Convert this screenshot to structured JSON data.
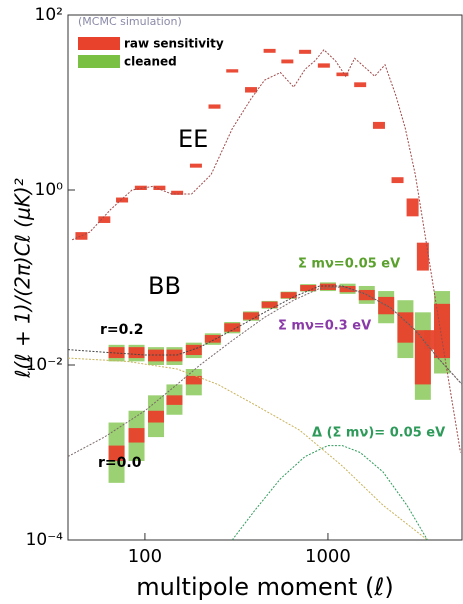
{
  "chart_data": {
    "type": "line",
    "x_label": "multipole moment (ℓ)",
    "y_label": "ℓ(ℓ + 1)/(2π)Cℓ (μK)²",
    "log_x": true,
    "log_y": true,
    "xlim": [
      38,
      5400
    ],
    "ylim": [
      0.0001,
      100
    ],
    "xticks": [
      100,
      1000
    ],
    "yticks": [
      {
        "value": 0.0001,
        "label": "10⁻⁴"
      },
      {
        "value": 0.01,
        "label": "10⁻²"
      },
      {
        "value": 1,
        "label": "10⁰"
      },
      {
        "value": 100,
        "label": "10²"
      }
    ],
    "legend_title": "(MCMC simulation)",
    "legend": [
      {
        "name": "raw sensitivity",
        "color": "#e8412c"
      },
      {
        "name": "cleaned",
        "color": "#7ac143"
      }
    ],
    "legend_position": "upper left",
    "annotations": [
      "EE",
      "BB",
      "r=0.2",
      "r=0.0",
      "Σ mν=0.05 eV",
      "Σ mν=0.3 eV",
      "Δ (Σ mν)= 0.05 eV"
    ],
    "lines": [
      {
        "color": "#a04848",
        "x": [
          40,
          50,
          65,
          85,
          110,
          140,
          180,
          230,
          300,
          380,
          450,
          550,
          650,
          750,
          850,
          950,
          1100,
          1250,
          1400,
          1600,
          1800,
          2050,
          2350,
          2650,
          3000,
          3400,
          3900,
          4500,
          5300
        ],
        "values": [
          0.27,
          0.33,
          0.6,
          1.0,
          1.1,
          0.9,
          0.9,
          1.5,
          5,
          11,
          18,
          22,
          15,
          24,
          30,
          40,
          30,
          20,
          32,
          25,
          20,
          27,
          12,
          5,
          1.5,
          0.3,
          0.05,
          0.008,
          0.001
        ]
      },
      {
        "color": "#c8b25a",
        "x": [
          38,
          80,
          150,
          250,
          400,
          700,
          1200,
          2000,
          3500
        ],
        "values": [
          0.012,
          0.011,
          0.009,
          0.006,
          0.0035,
          0.0018,
          0.0007,
          0.00025,
          0.0001
        ]
      },
      {
        "color": "#444444",
        "x": [
          38,
          60,
          100,
          150,
          200,
          300,
          450,
          650,
          900,
          1200,
          1600,
          2200,
          3000,
          4000,
          5400
        ],
        "values": [
          0.015,
          0.014,
          0.013,
          0.013,
          0.016,
          0.025,
          0.04,
          0.06,
          0.08,
          0.08,
          0.065,
          0.045,
          0.025,
          0.012,
          0.006
        ]
      },
      {
        "color": "#7a6a6a",
        "x": [
          38,
          60,
          100,
          150,
          200,
          300,
          450,
          650,
          900,
          1200,
          1600,
          2200,
          3000,
          4000,
          5400
        ],
        "values": [
          0.0009,
          0.0015,
          0.003,
          0.006,
          0.01,
          0.019,
          0.035,
          0.055,
          0.075,
          0.078,
          0.065,
          0.045,
          0.025,
          0.012,
          0.006
        ]
      },
      {
        "color": "#2e9a5a",
        "x": [
          300,
          400,
          550,
          750,
          1000,
          1200,
          1500,
          2000,
          2700,
          3500
        ],
        "values": [
          0.0001,
          0.00022,
          0.0005,
          0.0009,
          0.0012,
          0.0012,
          0.001,
          0.0006,
          0.00025,
          0.0001
        ]
      }
    ],
    "bandpowers": [
      {
        "x": [
          45,
          60,
          75,
          95,
          120,
          150,
          190,
          240,
          300,
          380,
          480,
          600,
          750,
          950,
          1200,
          1500,
          1900,
          2400,
          2900,
          3300,
          3600
        ],
        "raw_lower": [
          0.27,
          0.42,
          0.72,
          1.0,
          1.0,
          0.88,
          1.8,
          8.5,
          22,
          13,
          37,
          28,
          36,
          25,
          20,
          15,
          5,
          1.2,
          0.5,
          0.12,
          0.015
        ],
        "raw_upper": [
          0.33,
          0.5,
          0.82,
          1.12,
          1.12,
          0.98,
          2.0,
          9.5,
          24,
          15,
          41,
          31,
          40,
          28,
          22,
          17,
          6,
          1.4,
          0.8,
          0.25,
          0.025
        ]
      },
      {
        "x": [
          70,
          90,
          115,
          145,
          185,
          235,
          300,
          380,
          480,
          610,
          780,
          1000,
          1280,
          1630,
          2080,
          2650,
          3300,
          4200
        ],
        "raw_lower": [
          0.012,
          0.012,
          0.011,
          0.011,
          0.013,
          0.018,
          0.024,
          0.033,
          0.045,
          0.058,
          0.07,
          0.072,
          0.068,
          0.055,
          0.038,
          0.018,
          0.006,
          0.012
        ],
        "raw_upper": [
          0.016,
          0.016,
          0.015,
          0.015,
          0.017,
          0.022,
          0.03,
          0.04,
          0.053,
          0.068,
          0.082,
          0.085,
          0.08,
          0.072,
          0.06,
          0.04,
          0.025,
          0.05
        ],
        "cleaned_lower": [
          0.011,
          0.011,
          0.01,
          0.01,
          0.012,
          0.017,
          0.023,
          0.032,
          0.044,
          0.057,
          0.069,
          0.07,
          0.065,
          0.05,
          0.03,
          0.012,
          0.004,
          0.008
        ],
        "cleaned_upper": [
          0.017,
          0.017,
          0.016,
          0.016,
          0.018,
          0.023,
          0.031,
          0.041,
          0.054,
          0.069,
          0.084,
          0.088,
          0.085,
          0.08,
          0.07,
          0.055,
          0.04,
          0.07
        ]
      },
      {
        "x": [
          70,
          90,
          115,
          145,
          185
        ],
        "raw_lower": [
          0.0008,
          0.0013,
          0.0022,
          0.0035,
          0.006
        ],
        "raw_upper": [
          0.0012,
          0.0019,
          0.003,
          0.0045,
          0.0075
        ],
        "cleaned_lower": [
          0.00045,
          0.0008,
          0.0015,
          0.0027,
          0.0045
        ],
        "cleaned_upper": [
          0.0022,
          0.003,
          0.0045,
          0.006,
          0.009
        ]
      }
    ]
  }
}
